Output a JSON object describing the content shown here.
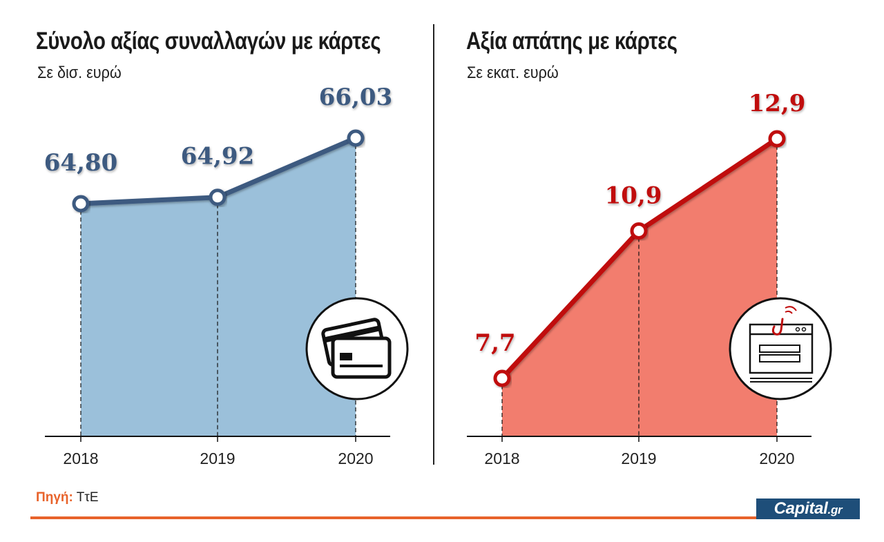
{
  "chart_data": [
    {
      "type": "area",
      "title": "Σύνολο αξίας συναλλαγών με κάρτες",
      "subtitle": "Σε δισ. ευρώ",
      "categories": [
        "2018",
        "2019",
        "2020"
      ],
      "values": [
        64.8,
        64.92,
        66.03
      ],
      "value_labels": [
        "64,80",
        "64,92",
        "66,03"
      ],
      "line_color": "#3d5a80",
      "fill_color": "#9bc0da",
      "icon": "credit-cards-icon"
    },
    {
      "type": "area",
      "title": "Αξία απάτης με κάρτες",
      "subtitle": "Σε εκατ. ευρώ",
      "categories": [
        "2018",
        "2019",
        "2020"
      ],
      "values": [
        7.7,
        10.9,
        12.9
      ],
      "value_labels": [
        "7,7",
        "10,9",
        "12,9"
      ],
      "line_color": "#c00d0d",
      "fill_color": "#f27d6e",
      "icon": "phishing-hook-icon"
    }
  ],
  "source": {
    "label": "Πηγή:",
    "value": "ΤτΕ"
  },
  "brand": {
    "name": "Capital",
    "suffix": ".gr",
    "color": "#1e4e79",
    "accent": "#e8632b"
  }
}
